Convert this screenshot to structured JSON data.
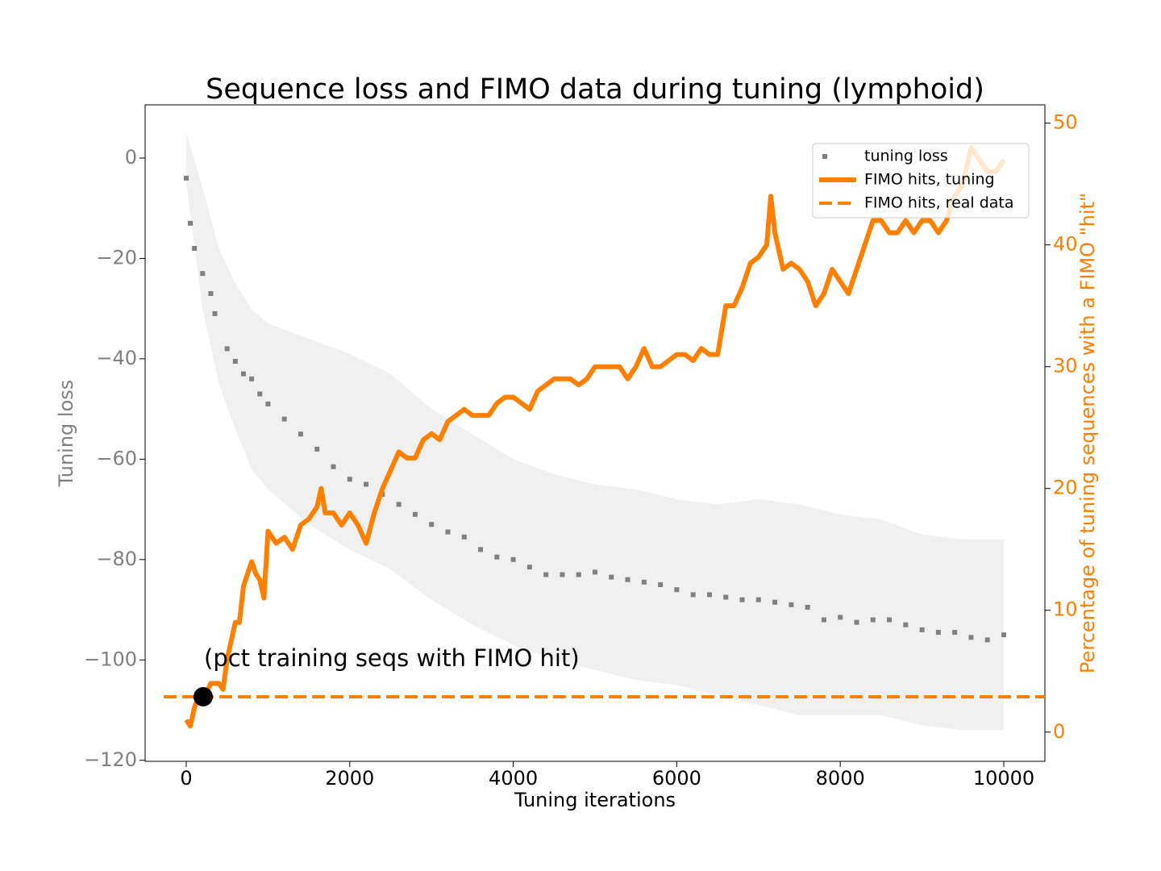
{
  "chart_data": {
    "type": "line",
    "title": "Sequence loss and FIMO data during tuning (lymphoid)",
    "x_label": "Tuning iterations",
    "y_label": "Tuning loss",
    "y2_label": "Percentage of tuning sequences with a FIMO \"hit\"",
    "annotation": "(pct training seqs with FIMO hit)",
    "xlim": [
      -503,
      10503
    ],
    "xticks": [
      0,
      2000,
      4000,
      6000,
      8000,
      10000
    ],
    "ylim": [
      -120.2,
      10.6
    ],
    "yticks": [
      {
        "value": -120,
        "label": "−120"
      },
      {
        "value": -100,
        "label": "−100"
      },
      {
        "value": -80,
        "label": "−80"
      },
      {
        "value": -60,
        "label": "−60"
      },
      {
        "value": -40,
        "label": "−40"
      },
      {
        "value": -20,
        "label": "−20"
      },
      0
    ],
    "y2lim": [
      -2.4,
      51.5
    ],
    "y2ticks": [
      0,
      10,
      20,
      30,
      40,
      50
    ],
    "legend": "upper right",
    "band": {
      "color": "#f0f0f0",
      "x": [
        0,
        200,
        400,
        600,
        800,
        1000,
        1500,
        2000,
        2500,
        3000,
        3500,
        4000,
        4500,
        5000,
        5500,
        6000,
        6500,
        7000,
        7500,
        8000,
        8500,
        9000,
        9500,
        10000
      ],
      "upper": [
        5,
        -6,
        -18,
        -25,
        -30,
        -33,
        -36,
        -39,
        -43,
        -50,
        -55,
        -60,
        -63,
        -65,
        -66,
        -68,
        -69,
        -68,
        -69,
        -71,
        -72,
        -75,
        -76,
        -76
      ],
      "lower": [
        -5,
        -30,
        -45,
        -54,
        -62,
        -66,
        -73,
        -78,
        -82,
        -88,
        -93,
        -97,
        -100,
        -102,
        -104,
        -105,
        -107,
        -109,
        -111,
        -111,
        -111,
        -113,
        -114,
        -114
      ]
    },
    "series": [
      {
        "name": "tuning loss",
        "color": "#808080",
        "style": "dotted",
        "axis": "y",
        "x": [
          0,
          50,
          100,
          200,
          300,
          350,
          500,
          600,
          700,
          800,
          900,
          1000,
          1200,
          1400,
          1600,
          1800,
          2000,
          2200,
          2400,
          2600,
          2800,
          3000,
          3200,
          3400,
          3600,
          3800,
          4000,
          4200,
          4400,
          4600,
          4800,
          5000,
          5200,
          5400,
          5600,
          5800,
          6000,
          6200,
          6400,
          6600,
          6800,
          7000,
          7200,
          7400,
          7600,
          7800,
          8000,
          8200,
          8400,
          8600,
          8800,
          9000,
          9200,
          9400,
          9600,
          9800,
          10000
        ],
        "values": [
          -4,
          -13,
          -18,
          -23,
          -27,
          -31,
          -38,
          -40.5,
          -43,
          -44,
          -47,
          -49,
          -52,
          -55,
          -58,
          -61.5,
          -64,
          -65,
          -67,
          -69,
          -71,
          -73,
          -74.5,
          -75.5,
          -78,
          -79.5,
          -80,
          -81.5,
          -83,
          -83,
          -83,
          -82.5,
          -83.5,
          -84,
          -84.5,
          -85,
          -86,
          -87,
          -87,
          -87.5,
          -88,
          -88,
          -88.5,
          -89,
          -89.5,
          -92,
          -91.5,
          -92.5,
          -92,
          -92,
          -93,
          -94,
          -94.5,
          -94.5,
          -95.5,
          -96,
          -95
        ]
      },
      {
        "name": "FIMO hits, tuning",
        "color": "#ff8000",
        "style": "solid",
        "axis": "y2",
        "x": [
          0,
          50,
          100,
          150,
          200,
          300,
          400,
          450,
          500,
          600,
          650,
          700,
          800,
          850,
          900,
          950,
          1000,
          1100,
          1200,
          1300,
          1400,
          1500,
          1600,
          1650,
          1700,
          1800,
          1900,
          2000,
          2100,
          2200,
          2300,
          2400,
          2500,
          2600,
          2700,
          2800,
          2900,
          3000,
          3100,
          3200,
          3300,
          3400,
          3500,
          3600,
          3700,
          3800,
          3900,
          4000,
          4100,
          4200,
          4300,
          4400,
          4500,
          4600,
          4700,
          4800,
          4900,
          5000,
          5100,
          5200,
          5300,
          5400,
          5500,
          5600,
          5700,
          5800,
          5900,
          6000,
          6100,
          6200,
          6300,
          6400,
          6500,
          6600,
          6700,
          6800,
          6900,
          7000,
          7100,
          7150,
          7200,
          7300,
          7400,
          7500,
          7600,
          7700,
          7800,
          7900,
          8000,
          8100,
          8200,
          8300,
          8400,
          8500,
          8600,
          8700,
          8800,
          8900,
          9000,
          9100,
          9200,
          9300,
          9400,
          9500,
          9600,
          9700,
          9800,
          9900,
          10000
        ],
        "values": [
          1,
          0.5,
          2,
          3,
          2.5,
          4,
          4,
          3.5,
          6,
          9,
          9,
          12,
          14,
          13,
          12.5,
          11,
          16.5,
          15.5,
          16,
          15,
          17,
          17.5,
          18.5,
          20,
          18,
          18,
          17,
          18,
          17,
          15.5,
          18,
          20,
          21.5,
          23,
          22.5,
          22.5,
          24,
          24.5,
          24,
          25.5,
          26,
          26.5,
          26,
          26,
          26,
          27,
          27.5,
          27.5,
          27,
          26.5,
          28,
          28.5,
          29,
          29,
          29,
          28.5,
          29,
          30,
          30,
          30,
          30,
          29,
          30,
          31.5,
          30,
          30,
          30.5,
          31,
          31,
          30.5,
          31.5,
          31,
          31,
          35,
          35,
          36.5,
          38.5,
          39,
          40,
          44,
          41,
          38,
          38.5,
          38,
          37,
          35,
          36,
          38,
          37,
          36,
          38,
          40,
          42,
          42,
          41,
          41,
          42,
          41,
          42,
          42,
          41,
          42,
          44,
          45,
          48,
          47,
          46,
          46,
          47
        ]
      },
      {
        "name": "FIMO hits, real data",
        "color": "#ff8000",
        "style": "dashed",
        "axis": "y2",
        "x": [
          -276,
          10503
        ],
        "values": [
          2.9,
          2.9
        ]
      }
    ],
    "point": {
      "x": 207,
      "value": 2.9,
      "color": "#000000",
      "axis": "y2"
    }
  }
}
